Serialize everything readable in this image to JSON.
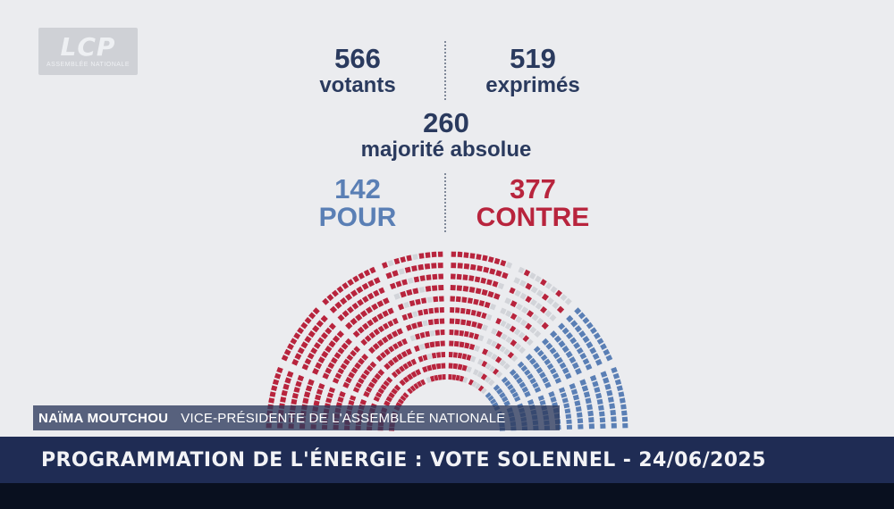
{
  "logo": {
    "text": "LCP",
    "sub": "ASSEMBLÉE NATIONALE"
  },
  "stats": {
    "votants": {
      "value": "566",
      "label": "votants"
    },
    "exprimes": {
      "value": "519",
      "label": "exprimés"
    },
    "majorite": {
      "value": "260",
      "label": "majorité absolue"
    },
    "pour": {
      "value": "142",
      "label": "POUR"
    },
    "contre": {
      "value": "377",
      "label": "CONTRE"
    }
  },
  "colors": {
    "pour": "#5a7fb5",
    "contre": "#b8243d",
    "absent": "#d2d4d9",
    "navy": "#2a3a5e"
  },
  "hemicycle": {
    "pour": 142,
    "contre": 377,
    "other": 47
  },
  "caption": {
    "name": "NAÏMA MOUTCHOU",
    "role": "VICE-PRÉSIDENTE DE L'ASSEMBLÉE NATIONALE"
  },
  "ticker": {
    "text": "PROGRAMMATION DE L'ÉNERGIE : VOTE SOLENNEL - 24/06/2025"
  }
}
